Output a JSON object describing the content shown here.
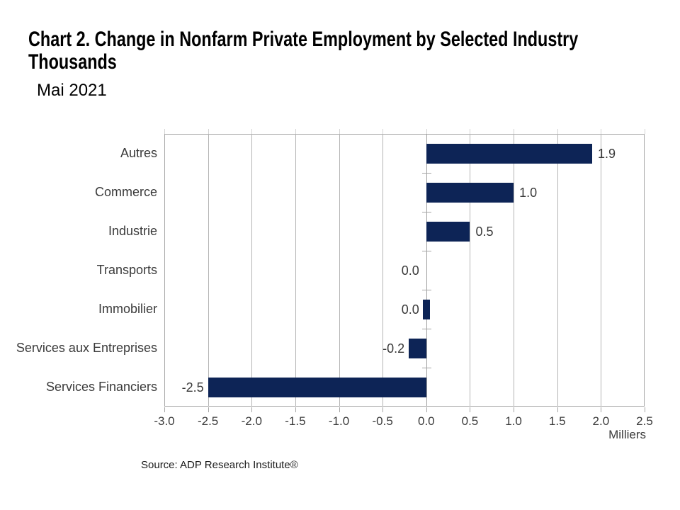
{
  "header": {
    "title_line1": "Chart 2. Change in Nonfarm Private Employment by Selected Industry",
    "title_line2": "Thousands",
    "subtitle": "Mai 2021"
  },
  "chart_data": {
    "type": "bar",
    "orientation": "horizontal",
    "title": "Chart 2. Change in Nonfarm Private Employment by Selected Industry Thousands",
    "subtitle": "Mai 2021",
    "categories": [
      "Autres",
      "Commerce",
      "Industrie",
      "Transports",
      "Immobilier",
      "Services aux Entreprises",
      "Services Financiers"
    ],
    "values": [
      1.9,
      1.0,
      0.5,
      0.0,
      0.0,
      -0.2,
      -2.5
    ],
    "value_labels": [
      "1.9",
      "1.0",
      "0.5",
      "0.0",
      "0.0",
      "-0.2",
      "-2.5"
    ],
    "zero_sliver_bar": [
      false,
      false,
      false,
      false,
      true,
      false,
      false
    ],
    "xlabel": "Milliers",
    "xlim": [
      -3.0,
      2.5
    ],
    "xticks": [
      -3.0,
      -2.5,
      -2.0,
      -1.5,
      -1.0,
      -0.5,
      0.0,
      0.5,
      1.0,
      1.5,
      2.0,
      2.5
    ],
    "xtick_labels": [
      "-3.0",
      "-2.5",
      "-2.0",
      "-1.5",
      "-1.0",
      "-0.5",
      "0.0",
      "0.5",
      "1.0",
      "1.5",
      "2.0",
      "2.5"
    ],
    "grid": true,
    "legend": false
  },
  "colors": {
    "bar": "#0d2456",
    "grid": "#b4b4b4",
    "border": "#a6a6a6",
    "zero_axis": "#9f9f9f",
    "tick": "#a6a6a6",
    "top_tick": "#d4d4d4",
    "text": "#3a3a3a"
  },
  "footer": {
    "source": "Source: ADP Research Institute®"
  }
}
